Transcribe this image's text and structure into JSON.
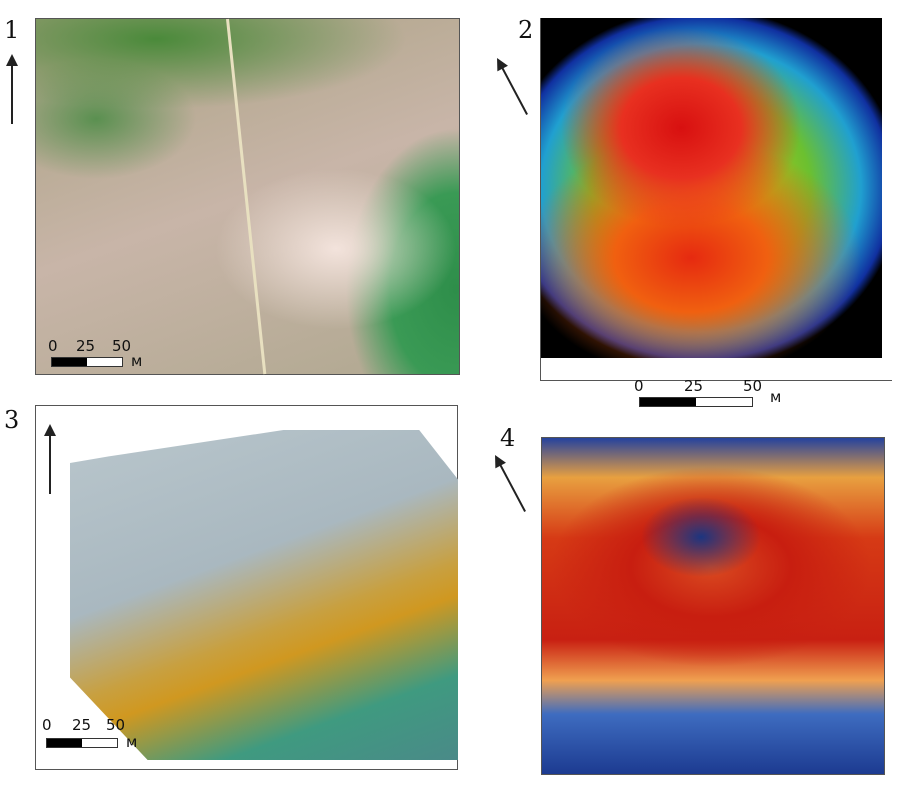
{
  "panels": [
    {
      "label": "1",
      "scale": {
        "ticks": [
          "0",
          "25",
          "50"
        ],
        "unit": "м"
      }
    },
    {
      "label": "2",
      "scale": {
        "ticks": [
          "0",
          "25",
          "50"
        ],
        "unit": "м"
      }
    },
    {
      "label": "3",
      "scale": {
        "ticks": [
          "0",
          "25",
          "50"
        ],
        "unit": "м"
      }
    },
    {
      "label": "4"
    }
  ],
  "icons": {
    "north_arrow": "north-arrow-icon"
  },
  "colors": {
    "frame": "#555555"
  }
}
